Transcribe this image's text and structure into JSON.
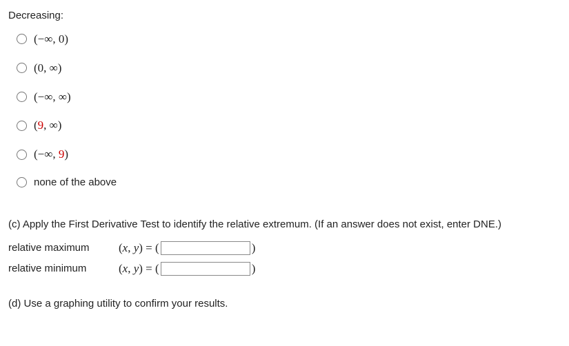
{
  "decreasing": {
    "label": "Decreasing:",
    "options": [
      {
        "html": "(−∞, 0)"
      },
      {
        "html": "(0, ∞)"
      },
      {
        "html": "(−∞, ∞)"
      },
      {
        "html": "(<span class=\"red\">9</span>, ∞)"
      },
      {
        "html": "(−∞, <span class=\"red\">9</span>)"
      },
      {
        "html": "none of the above",
        "plain": true
      }
    ]
  },
  "part_c": {
    "text": "(c) Apply the First Derivative Test to identify the relative extremum. (If an answer does not exist, enter DNE.)",
    "rows": [
      {
        "label": "relative maximum",
        "prefix": "(<span class=\"ital\">x</span>, <span class=\"ital\">y</span>) = (",
        "suffix": ")",
        "value": ""
      },
      {
        "label": "relative minimum",
        "prefix": "(<span class=\"ital\">x</span>, <span class=\"ital\">y</span>) = (",
        "suffix": ")",
        "value": ""
      }
    ]
  },
  "part_d": {
    "text": "(d) Use a graphing utility to confirm your results."
  }
}
